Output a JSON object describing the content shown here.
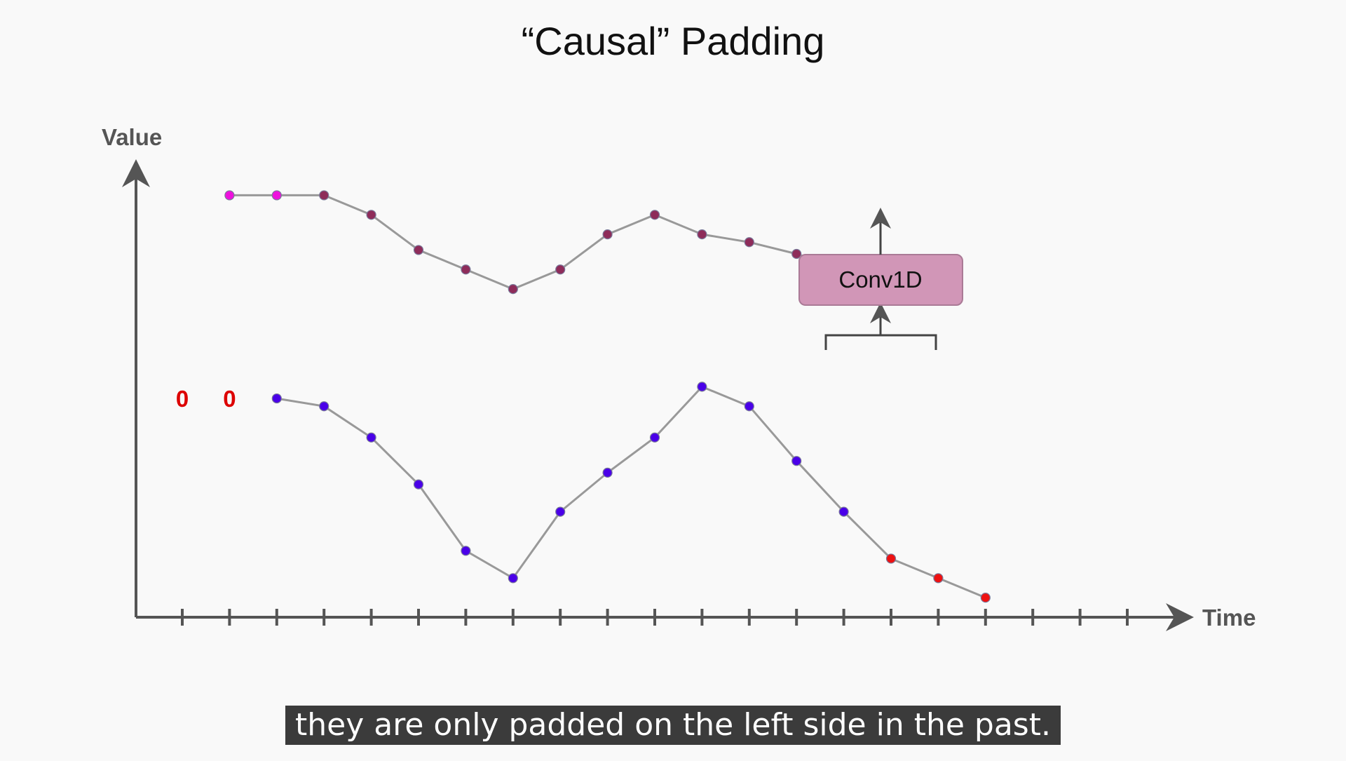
{
  "slide": {
    "title": "“Causal” Padding",
    "caption": "they are only padded on the left side in the past."
  },
  "axes": {
    "y_label": "Value",
    "x_label": "Time",
    "tick_count": 21
  },
  "labels": {
    "conv": "Conv1D",
    "pad_zeros": [
      "0",
      "0"
    ]
  },
  "colors": {
    "axis": "#555555",
    "line": "#999999",
    "input_point": "#4a00e8",
    "window_point": "#ee1111",
    "output_point": "#8e2c5a",
    "padded_output_point": "#ee11dd",
    "pad_zero_text": "#dd0000",
    "conv_box_fill": "#d196b7",
    "conv_box_stroke": "#aa7a96"
  },
  "chart_data": {
    "type": "line",
    "xlabel": "Time",
    "ylabel": "Value",
    "x_ticks": 21,
    "padding": {
      "side": "left",
      "count": 2,
      "value_label": "0",
      "x": [
        1,
        2
      ]
    },
    "input_series": {
      "x": [
        3,
        4,
        5,
        6,
        7,
        8,
        9,
        10,
        11,
        12,
        13,
        14,
        15,
        16,
        17,
        18
      ],
      "y": [
        5.6,
        5.4,
        4.6,
        3.4,
        1.7,
        1.0,
        2.7,
        3.7,
        4.6,
        5.9,
        5.4,
        4.0,
        2.7,
        1.5,
        1.0,
        null
      ],
      "highlighted_window_x": [
        16,
        17,
        18
      ]
    },
    "output_series": {
      "x": [
        2,
        3,
        4,
        5,
        6,
        7,
        8,
        9,
        10,
        11,
        12,
        13,
        14,
        15,
        16,
        17
      ],
      "y": [
        10.8,
        10.8,
        10.8,
        10.3,
        9.4,
        8.9,
        8.4,
        8.9,
        9.8,
        10.3,
        9.8,
        9.6,
        9.3,
        8.9,
        8.7,
        null
      ],
      "padded_outputs_x": [
        2,
        3
      ]
    }
  }
}
